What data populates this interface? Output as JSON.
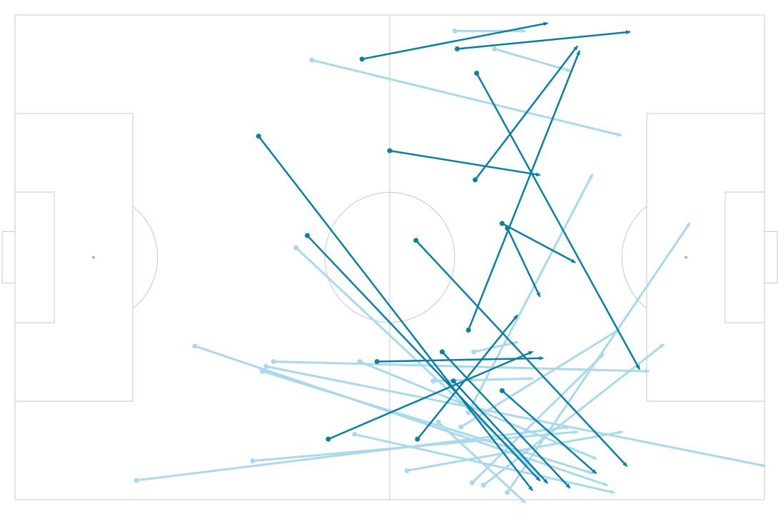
{
  "colors": {
    "background": "#ffffff",
    "pitch_fill": "#fdfdfd",
    "pitch_lines": "#c8c8c8",
    "pass_highlight": "#0b7fa3",
    "pass_faded": "#a9d9ea"
  },
  "passes": {
    "highlighted": [
      {
        "x1": 46.3,
        "y1": 9.1,
        "x2": 71.0,
        "y2": 1.7
      },
      {
        "x1": 59.0,
        "y1": 7.0,
        "x2": 82.0,
        "y2": 3.5
      },
      {
        "x1": 61.6,
        "y1": 12.0,
        "x2": 83.3,
        "y2": 73.0
      },
      {
        "x1": 50.0,
        "y1": 28.0,
        "x2": 70.0,
        "y2": 33.0
      },
      {
        "x1": 61.4,
        "y1": 34.0,
        "x2": 75.0,
        "y2": 6.5
      },
      {
        "x1": 32.5,
        "y1": 25.0,
        "x2": 69.0,
        "y2": 98.0
      },
      {
        "x1": 39.0,
        "y1": 45.5,
        "x2": 70.0,
        "y2": 96.0
      },
      {
        "x1": 53.5,
        "y1": 46.5,
        "x2": 81.6,
        "y2": 93.0
      },
      {
        "x1": 65.0,
        "y1": 43.0,
        "x2": 74.7,
        "y2": 51.0
      },
      {
        "x1": 65.7,
        "y1": 44.0,
        "x2": 70.0,
        "y2": 58.0
      },
      {
        "x1": 60.5,
        "y1": 65.0,
        "x2": 75.3,
        "y2": 7.5
      },
      {
        "x1": 48.3,
        "y1": 71.5,
        "x2": 70.4,
        "y2": 70.8
      },
      {
        "x1": 57.0,
        "y1": 69.5,
        "x2": 74.0,
        "y2": 97.5
      },
      {
        "x1": 41.8,
        "y1": 87.5,
        "x2": 69.0,
        "y2": 69.5
      },
      {
        "x1": 53.7,
        "y1": 87.5,
        "x2": 67.0,
        "y2": 62.0
      },
      {
        "x1": 65.0,
        "y1": 77.5,
        "x2": 77.5,
        "y2": 94.5
      },
      {
        "x1": 58.5,
        "y1": 75.5,
        "x2": 71.0,
        "y2": 96.5
      }
    ],
    "faded": [
      {
        "x1": 58.7,
        "y1": 3.3,
        "x2": 68.0,
        "y2": 3.3
      },
      {
        "x1": 64.0,
        "y1": 7.0,
        "x2": 74.0,
        "y2": 11.5
      },
      {
        "x1": 39.6,
        "y1": 9.3,
        "x2": 80.8,
        "y2": 24.8
      },
      {
        "x1": 37.5,
        "y1": 48.0,
        "x2": 70.0,
        "y2": 95.0
      },
      {
        "x1": 24.0,
        "y1": 68.3,
        "x2": 79.0,
        "y2": 97.0
      },
      {
        "x1": 34.5,
        "y1": 71.5,
        "x2": 84.5,
        "y2": 73.5
      },
      {
        "x1": 33.5,
        "y1": 72.5,
        "x2": 100.0,
        "y2": 93.0
      },
      {
        "x1": 33.0,
        "y1": 73.5,
        "x2": 77.0,
        "y2": 94.5
      },
      {
        "x1": 46.0,
        "y1": 71.5,
        "x2": 77.5,
        "y2": 91.5
      },
      {
        "x1": 55.8,
        "y1": 75.5,
        "x2": 69.0,
        "y2": 75.0
      },
      {
        "x1": 45.3,
        "y1": 86.5,
        "x2": 79.9,
        "y2": 98.5
      },
      {
        "x1": 31.7,
        "y1": 92.0,
        "x2": 75.0,
        "y2": 86.0
      },
      {
        "x1": 16.2,
        "y1": 96.0,
        "x2": 74.0,
        "y2": 85.0
      },
      {
        "x1": 52.3,
        "y1": 94.0,
        "x2": 81.0,
        "y2": 86.0
      },
      {
        "x1": 61.0,
        "y1": 96.5,
        "x2": 78.5,
        "y2": 70.0
      },
      {
        "x1": 62.5,
        "y1": 97.0,
        "x2": 86.5,
        "y2": 68.0
      },
      {
        "x1": 65.7,
        "y1": 98.5,
        "x2": 90.0,
        "y2": 43.0
      },
      {
        "x1": 60.5,
        "y1": 82.0,
        "x2": 77.0,
        "y2": 33.0
      },
      {
        "x1": 61.2,
        "y1": 69.5,
        "x2": 67.0,
        "y2": 67.5
      },
      {
        "x1": 59.5,
        "y1": 85.0,
        "x2": 80.5,
        "y2": 65.0
      },
      {
        "x1": 56.5,
        "y1": 84.0,
        "x2": 68.0,
        "y2": 100.5
      }
    ]
  }
}
